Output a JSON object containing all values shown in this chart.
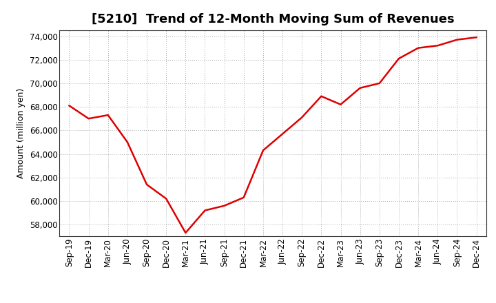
{
  "title": "[5210]  Trend of 12-Month Moving Sum of Revenues",
  "ylabel": "Amount (million yen)",
  "line_color": "#dd0000",
  "background_color": "#ffffff",
  "grid_color": "#aaaaaa",
  "x_labels": [
    "Sep-19",
    "Dec-19",
    "Mar-20",
    "Jun-20",
    "Sep-20",
    "Dec-20",
    "Mar-21",
    "Jun-21",
    "Sep-21",
    "Dec-21",
    "Mar-22",
    "Jun-22",
    "Sep-22",
    "Dec-22",
    "Mar-23",
    "Jun-23",
    "Sep-23",
    "Dec-23",
    "Mar-24",
    "Jun-24",
    "Sep-24",
    "Dec-24"
  ],
  "y_values": [
    68100,
    67000,
    67300,
    65000,
    61400,
    60200,
    57300,
    59200,
    59600,
    60300,
    64300,
    65700,
    67100,
    68900,
    68200,
    69600,
    70000,
    72100,
    73000,
    73200,
    73700,
    73900
  ],
  "ylim": [
    57000,
    74500
  ],
  "yticks": [
    58000,
    60000,
    62000,
    64000,
    66000,
    68000,
    70000,
    72000,
    74000
  ],
  "title_fontsize": 13,
  "ylabel_fontsize": 9,
  "tick_fontsize": 8.5,
  "line_width": 1.8
}
